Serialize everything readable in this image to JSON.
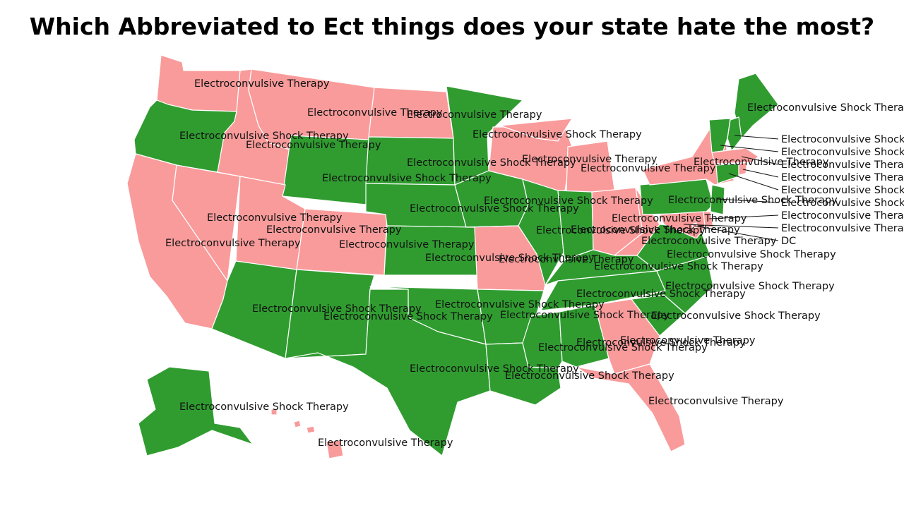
{
  "title": "Which Abbreviated to Ect things does your state hate the most?",
  "colors": {
    "ect": "#f99b9b",
    "ecst": "#309c30",
    "border": "#ffffff",
    "text": "#111111"
  },
  "categories": {
    "ect": "Electroconvulsive Therapy",
    "ecst": "Electroconvulsive Shock Therapy"
  },
  "states": [
    {
      "id": "WA",
      "cat": "ect"
    },
    {
      "id": "OR",
      "cat": "ecst"
    },
    {
      "id": "CA",
      "cat": "ect"
    },
    {
      "id": "ID",
      "cat": "ect"
    },
    {
      "id": "NV",
      "cat": "ect"
    },
    {
      "id": "MT",
      "cat": "ect"
    },
    {
      "id": "WY",
      "cat": "ecst"
    },
    {
      "id": "UT",
      "cat": "ect"
    },
    {
      "id": "CO",
      "cat": "ect"
    },
    {
      "id": "AZ",
      "cat": "ecst"
    },
    {
      "id": "NM",
      "cat": "ecst"
    },
    {
      "id": "ND",
      "cat": "ect"
    },
    {
      "id": "SD",
      "cat": "ecst"
    },
    {
      "id": "NE",
      "cat": "ecst"
    },
    {
      "id": "KS",
      "cat": "ecst"
    },
    {
      "id": "OK",
      "cat": "ecst"
    },
    {
      "id": "TX",
      "cat": "ecst"
    },
    {
      "id": "MN",
      "cat": "ecst"
    },
    {
      "id": "IA",
      "cat": "ecst"
    },
    {
      "id": "MO",
      "cat": "ect"
    },
    {
      "id": "AR",
      "cat": "ecst"
    },
    {
      "id": "LA",
      "cat": "ecst"
    },
    {
      "id": "WI",
      "cat": "ect"
    },
    {
      "id": "IL",
      "cat": "ecst"
    },
    {
      "id": "MI",
      "cat": "ect"
    },
    {
      "id": "IN",
      "cat": "ecst"
    },
    {
      "id": "OH",
      "cat": "ect"
    },
    {
      "id": "KY",
      "cat": "ecst"
    },
    {
      "id": "TN",
      "cat": "ecst"
    },
    {
      "id": "MS",
      "cat": "ecst"
    },
    {
      "id": "AL",
      "cat": "ecst"
    },
    {
      "id": "GA",
      "cat": "ect"
    },
    {
      "id": "FL",
      "cat": "ect"
    },
    {
      "id": "SC",
      "cat": "ecst"
    },
    {
      "id": "NC",
      "cat": "ecst"
    },
    {
      "id": "VA",
      "cat": "ecst"
    },
    {
      "id": "WV",
      "cat": "ect"
    },
    {
      "id": "PA",
      "cat": "ecst"
    },
    {
      "id": "NY",
      "cat": "ect"
    },
    {
      "id": "ME",
      "cat": "ecst"
    },
    {
      "id": "NH",
      "cat": "ecst"
    },
    {
      "id": "VT",
      "cat": "ecst"
    },
    {
      "id": "MA",
      "cat": "ect"
    },
    {
      "id": "CT",
      "cat": "ecst"
    },
    {
      "id": "RI",
      "cat": "ect"
    },
    {
      "id": "NJ",
      "cat": "ecst"
    },
    {
      "id": "DE",
      "cat": "ect"
    },
    {
      "id": "MD",
      "cat": "ect"
    },
    {
      "id": "DC",
      "cat": "ect"
    },
    {
      "id": "AK",
      "cat": "ecst"
    },
    {
      "id": "HI",
      "cat": "ect"
    }
  ],
  "labels": [
    {
      "id": "WA",
      "text": "Electroconvulsive Therapy"
    },
    {
      "id": "OR",
      "text": "Electroconvulsive Shock Therapy"
    },
    {
      "id": "ID",
      "text": "Electroconvulsive Therapy"
    },
    {
      "id": "MT",
      "text": "Electroconvulsive Therapy"
    },
    {
      "id": "ND",
      "text": "Electroconvulsive Therapy"
    },
    {
      "id": "MN",
      "text": "Electroconvulsive Shock Therapy"
    },
    {
      "id": "SD",
      "text": "Electroconvulsive Shock Therapy"
    },
    {
      "id": "WY",
      "text": "Electroconvulsive Shock Therapy"
    },
    {
      "id": "WI",
      "text": "Electroconvulsive Therapy"
    },
    {
      "id": "MI",
      "text": "Electroconvulsive Therapy"
    },
    {
      "id": "NV",
      "text": "Electroconvulsive Therapy"
    },
    {
      "id": "UT",
      "text": "Electroconvulsive Therapy"
    },
    {
      "id": "CA",
      "text": "Electroconvulsive Therapy"
    },
    {
      "id": "CO",
      "text": "Electroconvulsive Therapy"
    },
    {
      "id": "NE",
      "text": "Electroconvulsive Shock Therapy"
    },
    {
      "id": "IA",
      "text": "Electroconvulsive Shock Therapy"
    },
    {
      "id": "KS",
      "text": "Electroconvulsive Shock Therapy"
    },
    {
      "id": "MO",
      "text": "Electroconvulsive Therapy"
    },
    {
      "id": "IL",
      "text": "Electroconvulsive Shock Therapy"
    },
    {
      "id": "IN",
      "text": "Electroconvulsive Shock Therapy"
    },
    {
      "id": "OH",
      "text": "Electroconvulsive Therapy"
    },
    {
      "id": "KY",
      "text": "Electroconvulsive Shock Therapy"
    },
    {
      "id": "WV",
      "text": "Electroconvulsive Therapy"
    },
    {
      "id": "VA",
      "text": "Electroconvulsive Shock Therapy"
    },
    {
      "id": "PA",
      "text": "Electroconvulsive Shock Therapy"
    },
    {
      "id": "NY",
      "text": "Electroconvulsive Therapy"
    },
    {
      "id": "AZ",
      "text": "Electroconvulsive Shock Therapy"
    },
    {
      "id": "NM",
      "text": "Electroconvulsive Shock Therapy"
    },
    {
      "id": "OK",
      "text": "Electroconvulsive Shock Therapy"
    },
    {
      "id": "TN",
      "text": "Electroconvulsive Shock Therapy"
    },
    {
      "id": "NC",
      "text": "Electroconvulsive Shock Therapy"
    },
    {
      "id": "AR",
      "text": "Electroconvulsive Shock Therapy"
    },
    {
      "id": "SC",
      "text": "Electroconvulsive Shock Therapy"
    },
    {
      "id": "MS",
      "text": "Electroconvulsive Shock Therapy"
    },
    {
      "id": "AL",
      "text": "Electroconvulsive Shock Therapy"
    },
    {
      "id": "GA",
      "text": "Electroconvulsive Therapy"
    },
    {
      "id": "TX",
      "text": "Electroconvulsive Shock Therapy"
    },
    {
      "id": "LA",
      "text": "Electroconvulsive Shock Therapy"
    },
    {
      "id": "FL",
      "text": "Electroconvulsive Therapy"
    },
    {
      "id": "AK",
      "text": "Electroconvulsive Shock Therapy"
    },
    {
      "id": "HI",
      "text": "Electroconvulsive Therapy"
    },
    {
      "id": "ME",
      "text": "Electroconvulsive Shock Therapy"
    },
    {
      "id": "NH",
      "text": "Electroconvulsive Shock Therapy"
    },
    {
      "id": "VT",
      "text": "Electroconvulsive Shock Therapy"
    },
    {
      "id": "MA",
      "text": "Electroconvulsive Therapy"
    },
    {
      "id": "RI",
      "text": "Electroconvulsive Therapy"
    },
    {
      "id": "CT",
      "text": "Electroconvulsive Shock Therapy"
    },
    {
      "id": "NJ",
      "text": "Electroconvulsive Shock Therapy"
    },
    {
      "id": "DE",
      "text": "Electroconvulsive Therapy"
    },
    {
      "id": "MD",
      "text": "Electroconvulsive Therapy"
    },
    {
      "id": "DC",
      "text": "DC"
    }
  ]
}
